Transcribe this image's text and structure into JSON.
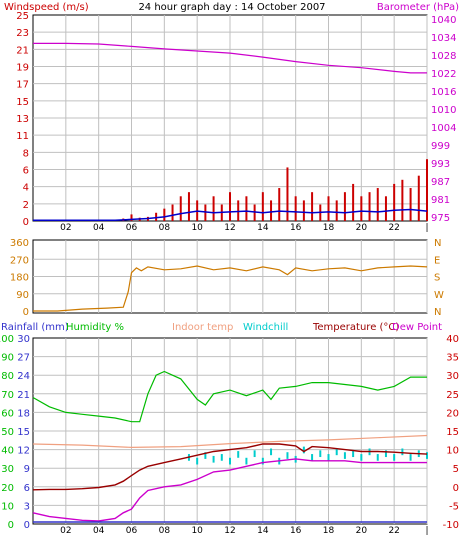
{
  "header": {
    "windspeed_label": "Windspeed (m/s)",
    "title": "24 hour graph day : 14 October 2007",
    "barometer_label": "Barometer (hPa)"
  },
  "colors": {
    "windspeed": "#cc0000",
    "windspeed_avg": "#0000cc",
    "barometer": "#cc00cc",
    "direction": "#cc7a00",
    "rainfall": "#3333cc",
    "humidity": "#00bb00",
    "indoor": "#f0a080",
    "windchill": "#00cccc",
    "temperature": "#990000",
    "dewpoint": "#cc00cc",
    "grid": "#c0c0c0",
    "axis_right_temp": "#cc0000"
  },
  "x_ticks": [
    "02",
    "04",
    "06",
    "08",
    "10",
    "12",
    "14",
    "16",
    "18",
    "20",
    "22",
    "|"
  ],
  "chart_data": [
    {
      "type": "bar",
      "name": "wind-barometer",
      "y_left": {
        "label": "Windspeed (m/s)",
        "ticks": [
          "0",
          "2",
          "4",
          "6",
          "8",
          "11",
          "13",
          "15",
          "17",
          "19",
          "21",
          "23",
          "25"
        ]
      },
      "y_right": {
        "label": "Barometer (hPa)",
        "ticks": [
          "975",
          "981",
          "987",
          "993",
          "999",
          "1004",
          "1010",
          "1016",
          "1022",
          "1028",
          "1034",
          "1040"
        ]
      },
      "series": [
        {
          "name": "Windspeed (m/s)",
          "kind": "bars",
          "x": [
            5.5,
            6.0,
            6.5,
            7.0,
            7.5,
            8.0,
            8.5,
            9.0,
            9.5,
            10.0,
            10.5,
            11.0,
            11.5,
            12.0,
            12.5,
            13.0,
            13.5,
            14.0,
            14.5,
            15.0,
            15.5,
            16.0,
            16.5,
            17.0,
            17.5,
            18.0,
            18.5,
            19.0,
            19.5,
            20.0,
            20.5,
            21.0,
            21.5,
            22.0,
            22.5,
            23.0,
            23.5,
            24.0
          ],
          "values": [
            0.3,
            0.8,
            0.4,
            0.5,
            1.0,
            1.5,
            2.0,
            3.0,
            3.5,
            2.5,
            2.0,
            3.0,
            2.0,
            3.5,
            2.5,
            3.0,
            2.0,
            3.5,
            2.5,
            4.0,
            6.5,
            3.0,
            2.5,
            3.5,
            2.0,
            3.0,
            2.5,
            3.5,
            4.5,
            3.0,
            3.5,
            4.0,
            3.0,
            4.5,
            5.0,
            4.0,
            5.5,
            7.5
          ]
        },
        {
          "name": "Average windspeed",
          "kind": "line",
          "x": [
            0,
            5,
            6,
            7,
            8,
            9,
            10,
            11,
            12,
            13,
            14,
            15,
            16,
            17,
            18,
            19,
            20,
            21,
            22,
            23,
            24
          ],
          "values": [
            0.1,
            0.1,
            0.2,
            0.3,
            0.5,
            0.9,
            1.2,
            1.0,
            1.1,
            1.2,
            1.0,
            1.2,
            1.1,
            1.0,
            1.1,
            1.0,
            1.2,
            1.1,
            1.3,
            1.4,
            1.2
          ]
        },
        {
          "name": "Barometer (hPa)",
          "kind": "line",
          "axis": "right",
          "x": [
            0,
            2,
            4,
            6,
            8,
            10,
            12,
            14,
            16,
            18,
            20,
            22,
            23,
            24
          ],
          "values": [
            1032,
            1032,
            1031.8,
            1031,
            1030.2,
            1029.5,
            1028.8,
            1027.5,
            1026,
            1024.8,
            1024,
            1022.8,
            1022.3,
            1022.3
          ]
        }
      ]
    },
    {
      "type": "line",
      "name": "wind-direction",
      "y_left": {
        "ticks": [
          "0",
          "90",
          "180",
          "270",
          "360"
        ]
      },
      "y_right": {
        "ticks": [
          "N",
          "E",
          "S",
          "W",
          "N"
        ]
      },
      "series": [
        {
          "name": "Wind direction",
          "x": [
            0,
            1.5,
            3,
            4.5,
            5.5,
            5.8,
            6.0,
            6.3,
            6.6,
            7,
            8,
            9,
            10,
            11,
            12,
            13,
            14,
            15,
            15.5,
            16,
            17,
            18,
            19,
            20,
            21,
            22,
            23,
            24
          ],
          "values": [
            0,
            0,
            10,
            15,
            20,
            100,
            200,
            225,
            210,
            230,
            215,
            220,
            235,
            215,
            225,
            210,
            230,
            215,
            190,
            225,
            210,
            220,
            225,
            210,
            225,
            230,
            235,
            230
          ]
        }
      ]
    },
    {
      "type": "line",
      "name": "temperature-humidity",
      "legend": [
        "Rainfall (mm)",
        "Humidity %",
        "Indoor temp",
        "Windchill",
        "Temperature (°C)",
        "Dew Point"
      ],
      "y_left_rain": {
        "label": "Rainfall (mm)",
        "ticks": [
          "0",
          "3",
          "6",
          "9",
          "12",
          "15",
          "18",
          "21",
          "24",
          "27",
          "30"
        ]
      },
      "y_left_hum": {
        "label": "Humidity %",
        "ticks": [
          "0",
          "10",
          "20",
          "30",
          "40",
          "50",
          "60",
          "70",
          "80",
          "90",
          "100"
        ]
      },
      "y_right": {
        "label": "Temperature (°C)",
        "ticks": [
          "-10",
          "-5",
          "0",
          "5",
          "10",
          "15",
          "20",
          "25",
          "30",
          "35",
          "40"
        ]
      },
      "series": [
        {
          "name": "Humidity %",
          "x": [
            0,
            1,
            2,
            3,
            4,
            5,
            6,
            6.5,
            7,
            7.5,
            8,
            8.5,
            9,
            10,
            10.5,
            11,
            12,
            13,
            14,
            14.5,
            15,
            16,
            17,
            18,
            19,
            20,
            21,
            22,
            23,
            24
          ],
          "values": [
            68,
            63,
            60,
            59,
            58,
            57,
            55,
            55,
            70,
            80,
            82,
            80,
            78,
            67,
            64,
            70,
            72,
            69,
            72,
            67,
            73,
            74,
            76,
            76,
            75,
            74,
            72,
            74,
            79,
            79
          ]
        },
        {
          "name": "Indoor temp",
          "x": [
            0,
            3,
            6,
            9,
            12,
            15,
            18,
            21,
            24
          ],
          "values": [
            11.5,
            11.2,
            10.6,
            10.8,
            11.6,
            12.2,
            12.6,
            13.2,
            13.8
          ]
        },
        {
          "name": "Windchill",
          "x": [
            9.5,
            10,
            10.5,
            11,
            11.5,
            12,
            12.5,
            13,
            13.5,
            14,
            14.5,
            15,
            15.5,
            16,
            16.5,
            17,
            17.5,
            18,
            18.5,
            19,
            19.5,
            20,
            20.5,
            21,
            21.5,
            22,
            22.5,
            23,
            23.5,
            24
          ],
          "values": [
            7,
            6,
            7.5,
            6.5,
            7,
            6,
            7.8,
            6,
            8,
            6,
            8.5,
            6,
            7.5,
            6.5,
            9,
            7,
            8,
            7,
            8.5,
            7.5,
            8,
            7,
            8.5,
            7,
            8,
            7,
            8.5,
            7,
            8,
            7.5
          ]
        },
        {
          "name": "Temperature (°C)",
          "x": [
            0,
            1,
            2,
            3,
            4,
            5,
            5.5,
            6,
            6.5,
            7,
            8,
            9,
            10,
            11,
            12,
            13,
            14,
            15,
            16,
            16.5,
            17,
            18,
            19,
            20,
            21,
            22,
            23,
            24
          ],
          "values": [
            -0.8,
            -0.7,
            -0.7,
            -0.5,
            -0.2,
            0.5,
            1.5,
            3,
            4.5,
            5.5,
            6.5,
            7.5,
            8.5,
            9.5,
            10,
            10.5,
            11.5,
            11.5,
            11,
            9.5,
            10.8,
            10.5,
            10,
            9.5,
            9.5,
            9.3,
            9,
            8.8
          ]
        },
        {
          "name": "Dew Point",
          "x": [
            0,
            1,
            2,
            3,
            4,
            5,
            5.5,
            6,
            6.5,
            7,
            8,
            9,
            10,
            11,
            12,
            13,
            14,
            15,
            16,
            17,
            18,
            19,
            20,
            21,
            22,
            23,
            24
          ],
          "values": [
            -7,
            -8,
            -8.5,
            -9,
            -9.2,
            -8.5,
            -7,
            -6,
            -3,
            -1,
            0,
            0.5,
            2,
            4,
            4.5,
            5.5,
            6.5,
            7,
            7.5,
            7,
            7,
            7,
            6.5,
            6.5,
            6.5,
            6.5,
            6.5
          ]
        },
        {
          "name": "Rainfall (mm)",
          "x": [
            0,
            24
          ],
          "values": [
            0,
            0
          ]
        }
      ]
    }
  ]
}
